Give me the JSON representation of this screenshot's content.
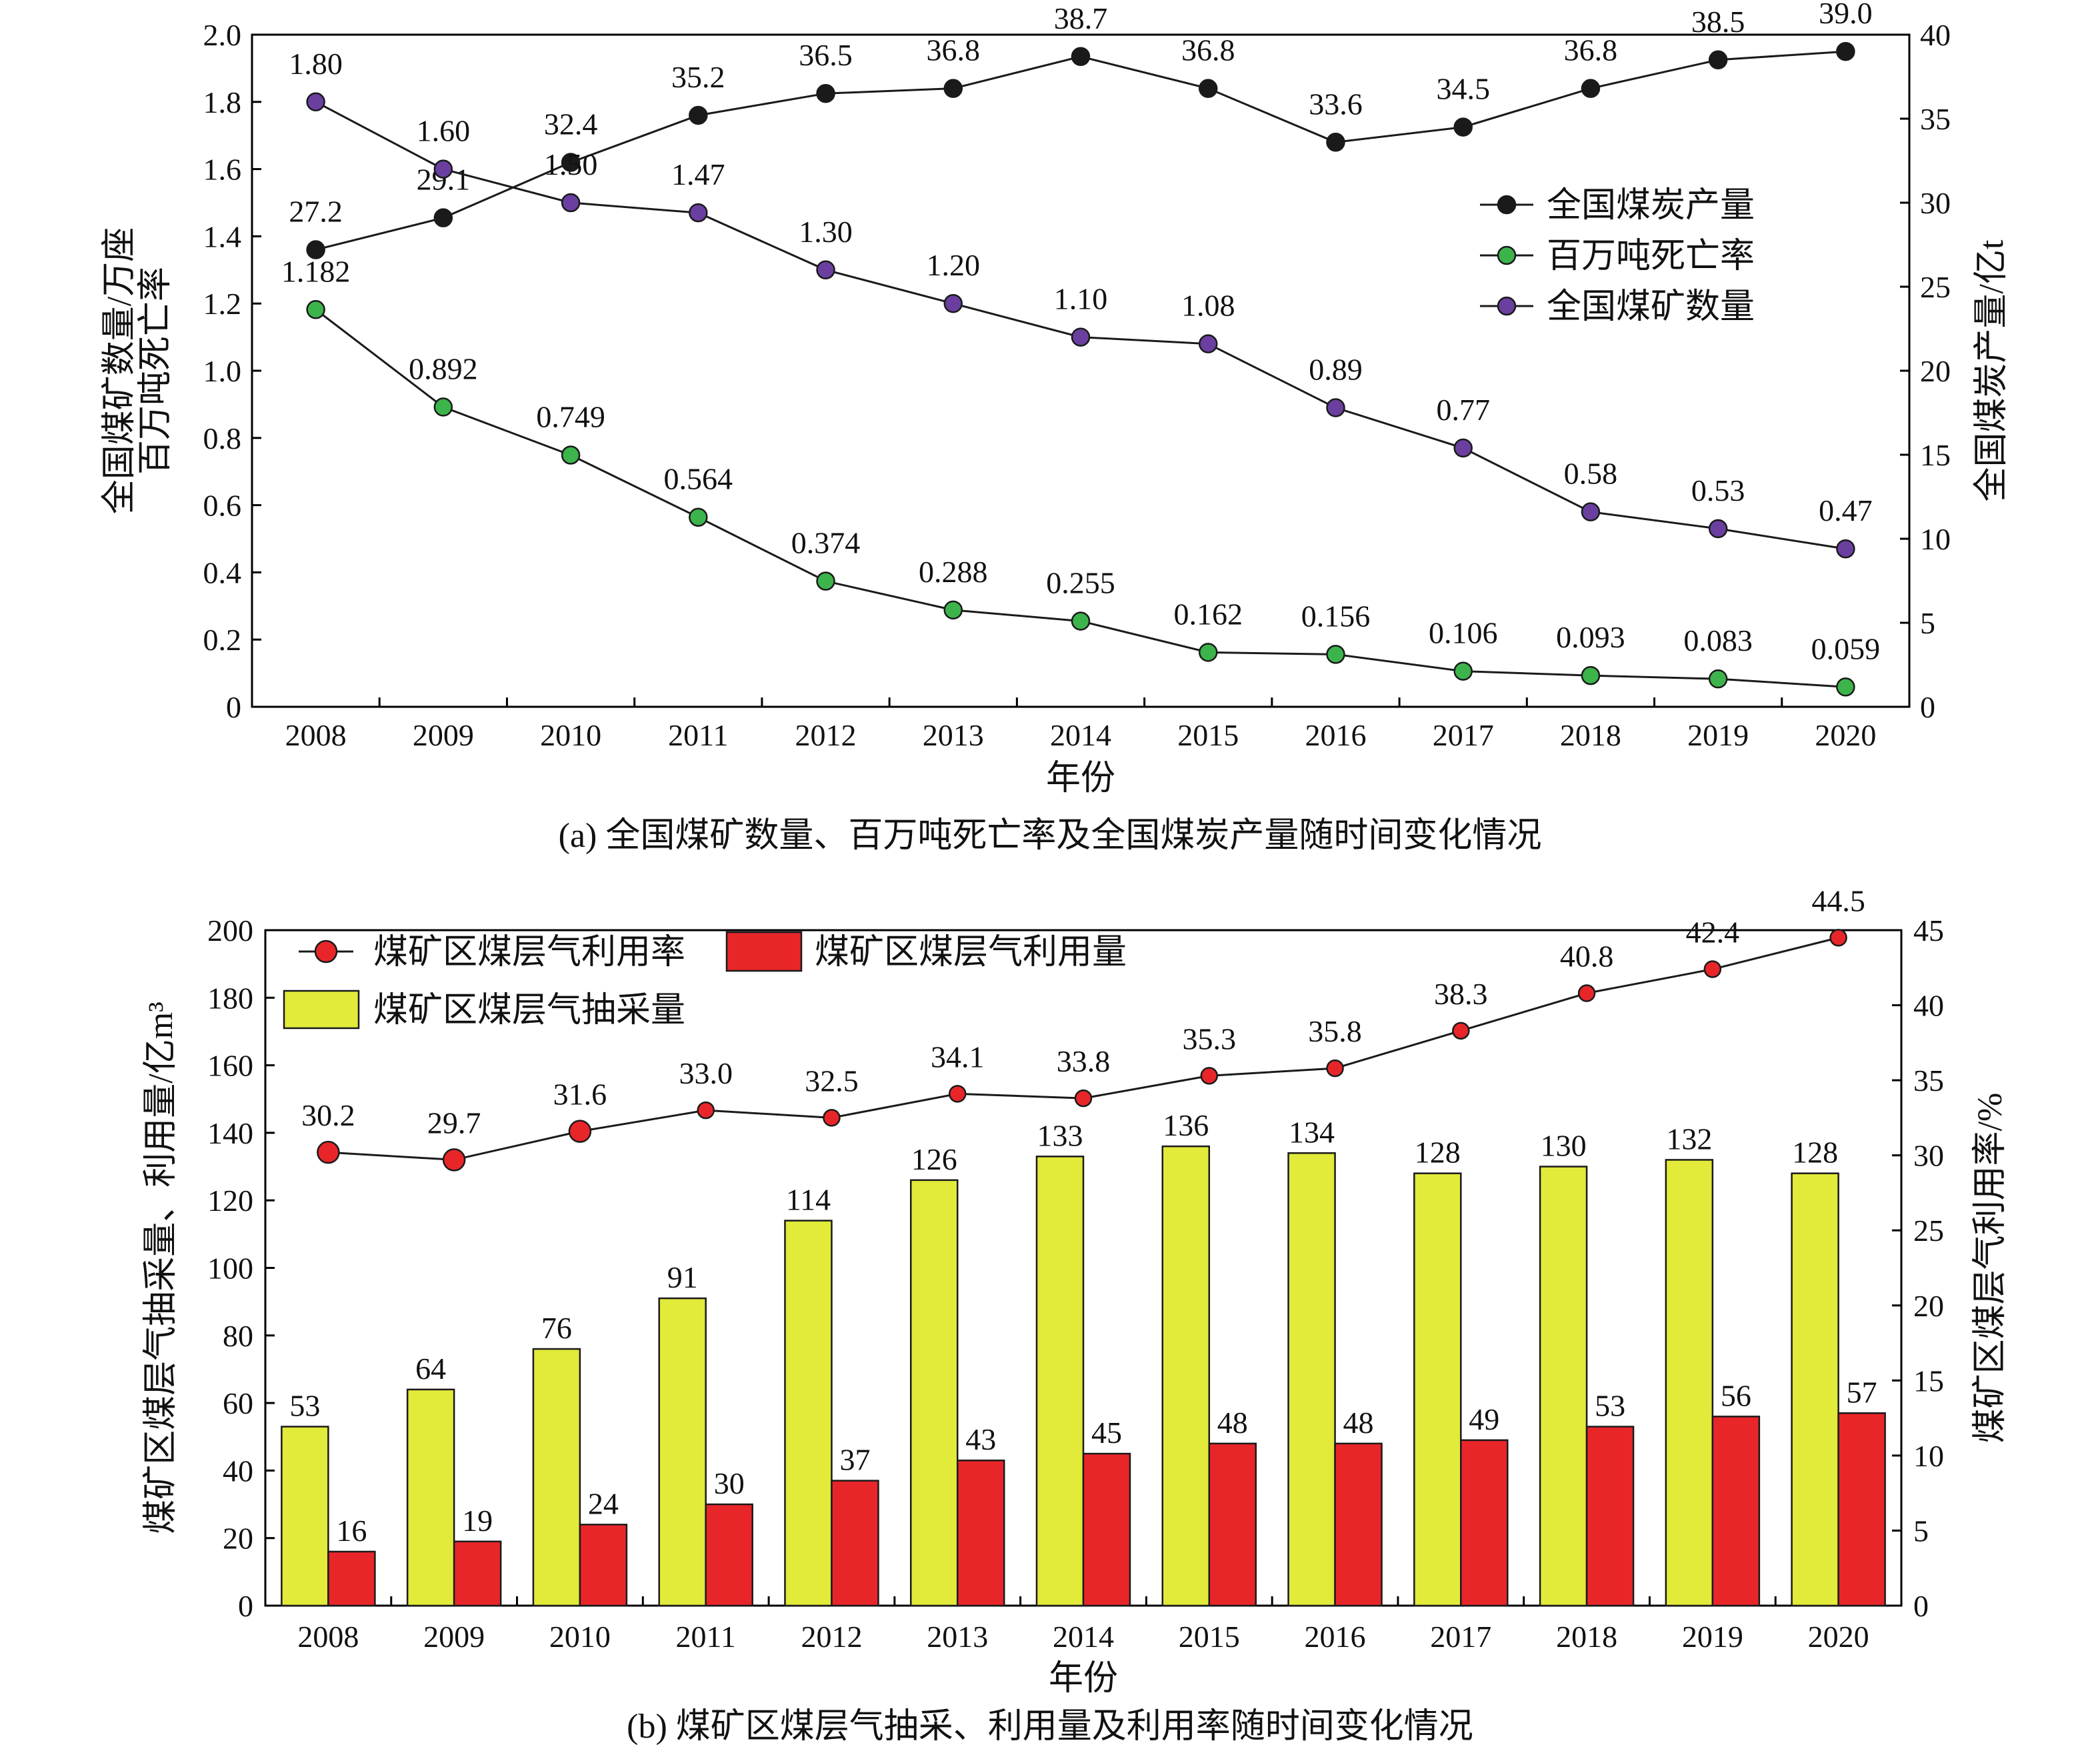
{
  "chart_data": [
    {
      "type": "line",
      "caption": "(a) 全国煤矿数量、百万吨死亡率及全国煤炭产量随时间变化情况",
      "xlabel": "年份",
      "ylabel_left": "全国煤矿数量/万座\n百万吨死亡率",
      "ylabel_right": "全国煤炭产量/亿t",
      "ylim_left": [
        0,
        2.0
      ],
      "ylim_right": [
        0,
        40
      ],
      "yticks_left": [
        "0",
        "0.2",
        "0.4",
        "0.6",
        "0.8",
        "1.0",
        "1.2",
        "1.4",
        "1.6",
        "1.8",
        "2.0"
      ],
      "yticks_right": [
        "0",
        "5",
        "10",
        "15",
        "20",
        "25",
        "30",
        "35",
        "40"
      ],
      "categories": [
        "2008",
        "2009",
        "2010",
        "2011",
        "2012",
        "2013",
        "2014",
        "2015",
        "2016",
        "2017",
        "2018",
        "2019",
        "2020"
      ],
      "legend_position": "right",
      "series": [
        {
          "name": "全国煤炭产量",
          "axis": "right",
          "color": "#1a1a1a",
          "values": [
            27.2,
            29.1,
            32.4,
            35.2,
            36.5,
            36.8,
            38.7,
            36.8,
            33.6,
            34.5,
            36.8,
            38.5,
            39.0
          ],
          "labels": [
            "27.2",
            "29.1",
            "32.4",
            "35.2",
            "36.5",
            "36.8",
            "38.7",
            "36.8",
            "33.6",
            "34.5",
            "36.8",
            "38.5",
            "39.0"
          ]
        },
        {
          "name": "百万吨死亡率",
          "axis": "left",
          "color": "#3cb44b",
          "values": [
            1.182,
            0.892,
            0.749,
            0.564,
            0.374,
            0.288,
            0.255,
            0.162,
            0.156,
            0.106,
            0.093,
            0.083,
            0.059
          ],
          "labels": [
            "1.182",
            "0.892",
            "0.749",
            "0.564",
            "0.374",
            "0.288",
            "0.255",
            "0.162",
            "0.156",
            "0.106",
            "0.093",
            "0.083",
            "0.059"
          ]
        },
        {
          "name": "全国煤矿数量",
          "axis": "left",
          "color": "#6a3fa0",
          "values": [
            1.8,
            1.6,
            1.5,
            1.47,
            1.3,
            1.2,
            1.1,
            1.08,
            0.89,
            0.77,
            0.58,
            0.53,
            0.47
          ],
          "labels": [
            "1.80",
            "1.60",
            "1.50",
            "1.47",
            "1.30",
            "1.20",
            "1.10",
            "1.08",
            "0.89",
            "0.77",
            "0.58",
            "0.53",
            "0.47"
          ]
        }
      ]
    },
    {
      "type": "bar",
      "caption": "(b) 煤矿区煤层气抽采、利用量及利用率随时间变化情况",
      "xlabel": "年份",
      "ylabel_left": "煤矿区煤层气抽采量、利用量/亿m³",
      "ylabel_right": "煤矿区煤层气利用率/%",
      "ylim_left": [
        0,
        200
      ],
      "ylim_right": [
        0,
        45
      ],
      "yticks_left": [
        "0",
        "20",
        "40",
        "60",
        "80",
        "100",
        "120",
        "140",
        "160",
        "180",
        "200"
      ],
      "yticks_right": [
        "0",
        "5",
        "10",
        "15",
        "20",
        "25",
        "30",
        "35",
        "40",
        "45"
      ],
      "categories": [
        "2008",
        "2009",
        "2010",
        "2011",
        "2012",
        "2013",
        "2014",
        "2015",
        "2016",
        "2017",
        "2018",
        "2019",
        "2020"
      ],
      "legend_position": "top-left",
      "series": [
        {
          "name": "煤矿区煤层气抽采量",
          "kind": "bar",
          "axis": "left",
          "color": "#e2ea3a",
          "values": [
            53,
            64,
            76,
            91,
            114,
            126,
            133,
            136,
            134,
            128,
            130,
            132,
            128
          ],
          "labels": [
            "53",
            "64",
            "76",
            "91",
            "114",
            "126",
            "133",
            "136",
            "134",
            "128",
            "130",
            "132",
            "128"
          ]
        },
        {
          "name": "煤矿区煤层气利用量",
          "kind": "bar",
          "axis": "left",
          "color": "#e8262a",
          "values": [
            16,
            19,
            24,
            30,
            37,
            43,
            45,
            48,
            48,
            49,
            53,
            56,
            57
          ],
          "labels": [
            "16",
            "19",
            "24",
            "30",
            "37",
            "43",
            "45",
            "48",
            "48",
            "49",
            "53",
            "56",
            "57"
          ]
        },
        {
          "name": "煤矿区煤层气利用率",
          "kind": "line",
          "axis": "right",
          "color": "#e8262a",
          "values": [
            30.2,
            29.7,
            31.6,
            33.0,
            32.5,
            34.1,
            33.8,
            35.3,
            35.8,
            38.3,
            40.8,
            42.4,
            44.5
          ],
          "labels": [
            "30.2",
            "29.7",
            "31.6",
            "33.0",
            "32.5",
            "34.1",
            "33.8",
            "35.3",
            "35.8",
            "38.3",
            "40.8",
            "42.4",
            "44.5"
          ]
        }
      ]
    }
  ]
}
